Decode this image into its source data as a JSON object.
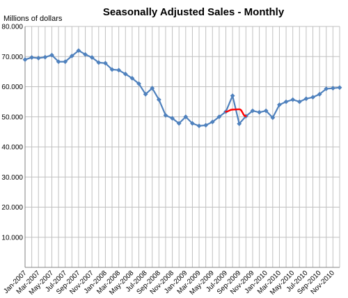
{
  "chart_data": {
    "type": "line",
    "title": "Seasonally Adjusted Sales - Monthly",
    "ylabel": "Millions of dollars",
    "xlabel": "",
    "ylim": [
      0,
      80
    ],
    "y_ticks": [
      "",
      "10.000",
      "20.000",
      "30.000",
      "40.000",
      "50.000",
      "60.000",
      "70.000",
      "80.000"
    ],
    "grid": true,
    "x": [
      "Jan-2007",
      "Feb-2007",
      "Mar-2007",
      "Apr-2007",
      "May-2007",
      "Jun-2007",
      "Jul-2007",
      "Aug-2007",
      "Sep-2007",
      "Oct-2007",
      "Nov-2007",
      "Dec-2007",
      "Jan-2008",
      "Feb-2008",
      "Mar-2008",
      "Apr-2008",
      "May-2008",
      "Jun-2008",
      "Jul-2008",
      "Aug-2008",
      "Sep-2008",
      "Oct-2008",
      "Nov-2008",
      "Dec-2008",
      "Jan-2009",
      "Feb-2009",
      "Mar-2009",
      "Apr-2009",
      "May-2009",
      "Jun-2009",
      "Jul-2009",
      "Aug-2009",
      "Sep-2009",
      "Oct-2009",
      "Nov-2009",
      "Dec-2009",
      "Jan-2010",
      "Feb-2010",
      "Mar-2010",
      "Apr-2010",
      "May-2010",
      "Jun-2010",
      "Jul-2010",
      "Aug-2010",
      "Sep-2010",
      "Oct-2010",
      "Nov-2010",
      "Dec-2010"
    ],
    "x_tick_labels": [
      "Jan-2007",
      "Mar-2007",
      "May-2007",
      "Jul-2007",
      "Sep-2007",
      "Nov-2007",
      "Jan-2008",
      "Mar-2008",
      "May-2008",
      "Jul-2008",
      "Sep-2008",
      "Nov-2008",
      "Jan-2009",
      "Mar-2009",
      "May-2009",
      "Jul-2009",
      "Sep-2009",
      "Nov-2009",
      "Jan-2010",
      "Mar-2010",
      "May-2010",
      "Jul-2010",
      "Sep-2010",
      "Nov-2010"
    ],
    "series": [
      {
        "color": "#4f81bd",
        "marker": "diamond",
        "values": [
          69.0,
          69.7,
          69.5,
          69.8,
          70.5,
          68.3,
          68.3,
          70.2,
          72.0,
          70.7,
          69.7,
          68.0,
          67.8,
          65.7,
          65.5,
          64.2,
          62.8,
          61.0,
          57.5,
          59.5,
          55.7,
          50.5,
          49.5,
          47.8,
          50.0,
          47.8,
          47.0,
          47.2,
          48.3,
          50.0,
          51.7,
          57.0,
          47.7,
          50.2,
          52.0,
          51.5,
          52.0,
          49.7,
          54.0,
          55.0,
          55.7,
          55.0,
          56.0,
          56.5,
          57.5,
          59.3,
          59.5,
          59.7
        ]
      },
      {
        "color": "#ff0000",
        "x": [
          "Jul-2009",
          "Aug-2009",
          "Sep-2009",
          "Oct-2009"
        ],
        "values": [
          51.7,
          52.4,
          52.5,
          50.2
        ]
      }
    ]
  }
}
